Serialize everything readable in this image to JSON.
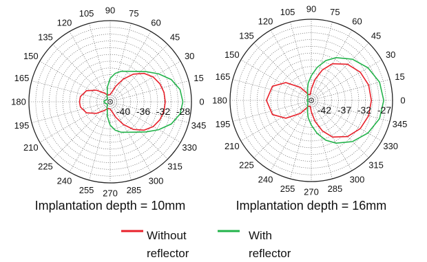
{
  "chart_data": [
    {
      "type": "polar",
      "caption": "Implantation depth = 10mm",
      "angle_labels": [
        "0",
        "15",
        "30",
        "45",
        "60",
        "75",
        "90",
        "105",
        "120",
        "135",
        "150",
        "165",
        "180",
        "195",
        "210",
        "225",
        "240",
        "255",
        "270",
        "285",
        "300",
        "315",
        "330",
        "345"
      ],
      "radial_labels": [
        "-40",
        "-36",
        "-32",
        "-28"
      ],
      "radial_range": [
        -44,
        -26
      ],
      "grid": true,
      "series": [
        {
          "name": "Without reflector",
          "color": "#e8202a",
          "points": [
            [
              0,
              -31.8
            ],
            [
              10,
              -31.9
            ],
            [
              20,
              -32.3
            ],
            [
              30,
              -33.0
            ],
            [
              40,
              -34.2
            ],
            [
              50,
              -36.0
            ],
            [
              60,
              -38.2
            ],
            [
              70,
              -40.3
            ],
            [
              80,
              -41.8
            ],
            [
              90,
              -42.4
            ],
            [
              110,
              -42.4
            ],
            [
              125,
              -41.6
            ],
            [
              140,
              -40.0
            ],
            [
              155,
              -38.2
            ],
            [
              170,
              -37.3
            ],
            [
              180,
              -37.2
            ],
            [
              190,
              -37.3
            ],
            [
              205,
              -38.2
            ],
            [
              220,
              -40.0
            ],
            [
              235,
              -41.6
            ],
            [
              250,
              -42.4
            ],
            [
              270,
              -42.4
            ],
            [
              280,
              -41.8
            ],
            [
              290,
              -40.3
            ],
            [
              300,
              -38.2
            ],
            [
              310,
              -36.0
            ],
            [
              320,
              -34.2
            ],
            [
              330,
              -33.0
            ],
            [
              340,
              -32.3
            ],
            [
              350,
              -31.9
            ],
            [
              360,
              -31.8
            ]
          ]
        },
        {
          "name": "With reflector",
          "color": "#22b34a",
          "points": [
            [
              0,
              -27.9
            ],
            [
              10,
              -28.3
            ],
            [
              20,
              -29.6
            ],
            [
              30,
              -31.6
            ],
            [
              40,
              -33.6
            ],
            [
              50,
              -35.2
            ],
            [
              60,
              -36.2
            ],
            [
              70,
              -36.8
            ],
            [
              80,
              -37.6
            ],
            [
              90,
              -38.8
            ],
            [
              100,
              -40.6
            ],
            [
              120,
              -42.6
            ],
            [
              140,
              -43.2
            ],
            [
              165,
              -42.8
            ],
            [
              180,
              -42.6
            ],
            [
              195,
              -42.8
            ],
            [
              220,
              -43.2
            ],
            [
              240,
              -42.6
            ],
            [
              260,
              -40.6
            ],
            [
              270,
              -38.8
            ],
            [
              280,
              -37.6
            ],
            [
              290,
              -36.8
            ],
            [
              300,
              -36.2
            ],
            [
              310,
              -35.2
            ],
            [
              320,
              -33.6
            ],
            [
              330,
              -31.6
            ],
            [
              340,
              -29.6
            ],
            [
              350,
              -28.3
            ],
            [
              360,
              -27.9
            ]
          ]
        }
      ]
    },
    {
      "type": "polar",
      "caption": "Implantation depth = 16mm",
      "angle_labels": [
        "0",
        "15",
        "30",
        "45",
        "60",
        "75",
        "90",
        "105",
        "120",
        "135",
        "150",
        "165",
        "180",
        "195",
        "210",
        "225",
        "240",
        "255",
        "270",
        "285",
        "300",
        "315",
        "330",
        "345"
      ],
      "radial_labels": [
        "-42",
        "-37",
        "-32",
        "-27"
      ],
      "radial_range": [
        -47,
        -24
      ],
      "grid": true,
      "series": [
        {
          "name": "Without reflector",
          "color": "#e8202a",
          "points": [
            [
              0,
              -30.0
            ],
            [
              15,
              -30.2
            ],
            [
              30,
              -31.0
            ],
            [
              45,
              -32.5
            ],
            [
              60,
              -35.0
            ],
            [
              70,
              -37.8
            ],
            [
              80,
              -41.0
            ],
            [
              90,
              -43.8
            ],
            [
              100,
              -45.3
            ],
            [
              115,
              -45.2
            ],
            [
              130,
              -42.2
            ],
            [
              145,
              -38.2
            ],
            [
              160,
              -35.3
            ],
            [
              180,
              -34.3
            ],
            [
              200,
              -35.3
            ],
            [
              215,
              -38.2
            ],
            [
              230,
              -42.2
            ],
            [
              245,
              -45.2
            ],
            [
              260,
              -45.3
            ],
            [
              270,
              -43.8
            ],
            [
              280,
              -41.0
            ],
            [
              290,
              -37.8
            ],
            [
              300,
              -35.0
            ],
            [
              315,
              -32.5
            ],
            [
              330,
              -31.0
            ],
            [
              345,
              -30.2
            ],
            [
              360,
              -30.0
            ]
          ]
        },
        {
          "name": "With reflector",
          "color": "#22b34a",
          "points": [
            [
              0,
              -26.5
            ],
            [
              15,
              -27.0
            ],
            [
              30,
              -28.5
            ],
            [
              45,
              -30.5
            ],
            [
              60,
              -33.0
            ],
            [
              70,
              -35.0
            ],
            [
              80,
              -37.5
            ],
            [
              90,
              -40.0
            ],
            [
              100,
              -42.0
            ],
            [
              110,
              -43.8
            ],
            [
              130,
              -45.4
            ],
            [
              160,
              -46.0
            ],
            [
              180,
              -45.8
            ],
            [
              200,
              -46.0
            ],
            [
              230,
              -45.4
            ],
            [
              250,
              -43.8
            ],
            [
              260,
              -42.0
            ],
            [
              270,
              -40.0
            ],
            [
              280,
              -37.5
            ],
            [
              290,
              -35.0
            ],
            [
              300,
              -33.0
            ],
            [
              315,
              -30.5
            ],
            [
              330,
              -28.5
            ],
            [
              345,
              -27.0
            ],
            [
              360,
              -26.5
            ]
          ]
        }
      ]
    }
  ],
  "legend": [
    {
      "label_line1": "Without",
      "label_line2": "reflector",
      "color": "#e8202a"
    },
    {
      "label_line1": "With",
      "label_line2": "reflector",
      "color": "#22b34a"
    }
  ]
}
